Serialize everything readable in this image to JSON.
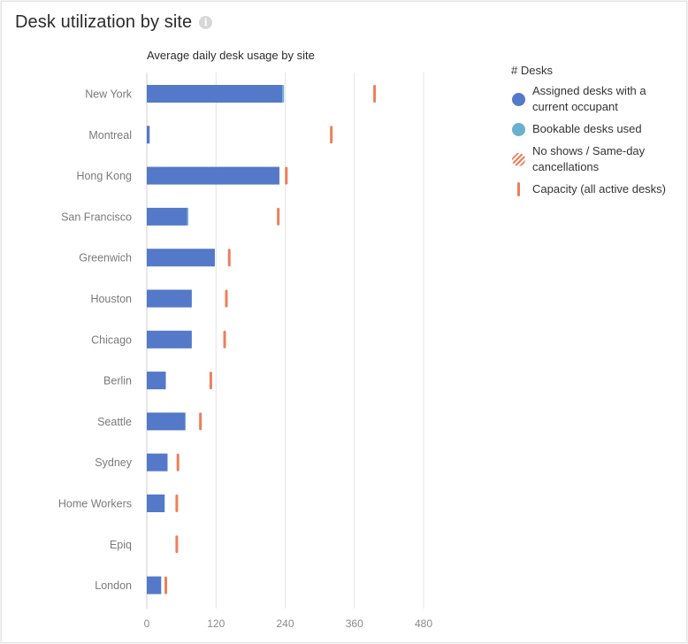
{
  "card": {
    "title": "Desk utilization by site",
    "info_icon": "info-icon"
  },
  "chart_data": {
    "type": "bar",
    "orientation": "horizontal",
    "stacked": true,
    "subtitle": "Average daily desk usage by site",
    "categories": [
      "New York",
      "Montreal",
      "Hong Kong",
      "San Francisco",
      "Greenwich",
      "Houston",
      "Chicago",
      "Berlin",
      "Seattle",
      "Sydney",
      "Home Workers",
      "Epiq",
      "London"
    ],
    "series": [
      {
        "name": "Assigned desks with a current occupant",
        "color": "#5479c8",
        "values": [
          235,
          5,
          230,
          70,
          118,
          78,
          78,
          33,
          67,
          36,
          31,
          0,
          25
        ]
      },
      {
        "name": "Bookable desks used",
        "color": "#6ab0d0",
        "values": [
          3,
          0,
          0,
          2,
          0,
          0,
          0,
          0,
          0,
          0,
          0,
          0,
          0
        ]
      },
      {
        "name": "No shows / Same-day cancellations",
        "color": "#ee7e5b",
        "values": [
          0,
          0,
          0,
          0,
          0,
          0,
          0,
          0,
          0,
          0,
          0,
          0,
          0
        ]
      }
    ],
    "capacity": {
      "name": "Capacity (all active desks)",
      "color": "#ee7e5b",
      "values": [
        395,
        320,
        242,
        228,
        143,
        138,
        135,
        111,
        93,
        54,
        52,
        52,
        33
      ]
    },
    "xlim": [
      0,
      480
    ],
    "xticks": [
      "0",
      "120",
      "240",
      "360",
      "480"
    ],
    "xlabel": "",
    "ylabel": "",
    "legend": {
      "title": "# Desks",
      "position": "right"
    }
  }
}
